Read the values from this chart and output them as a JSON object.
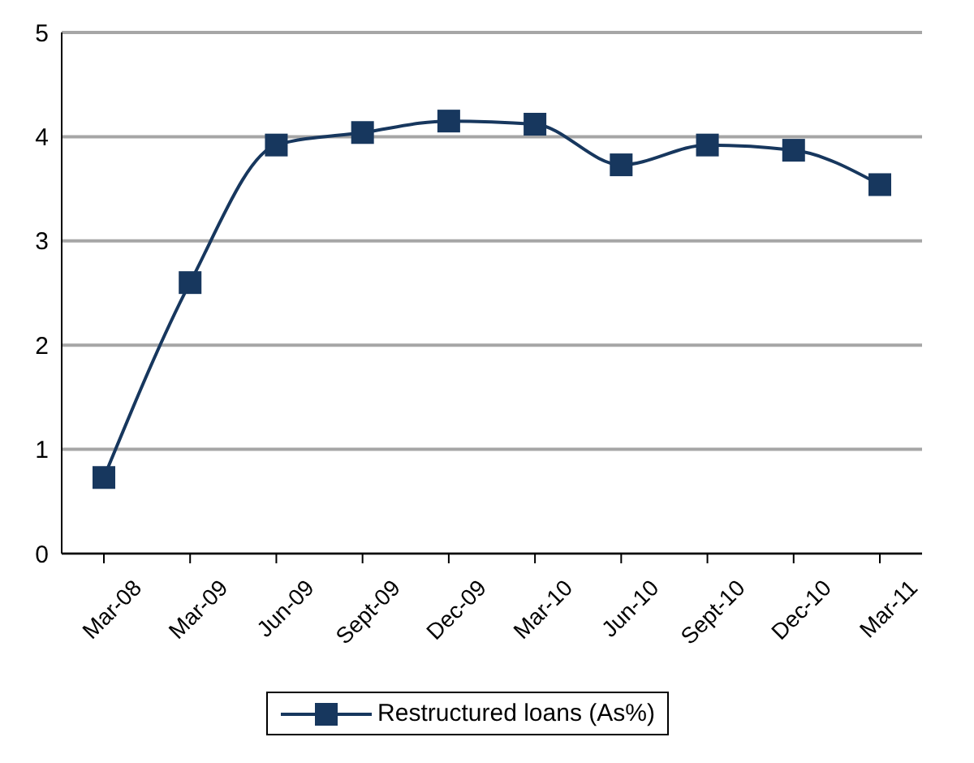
{
  "chart_data": {
    "type": "line",
    "categories": [
      "Mar-08",
      "Mar-09",
      "Jun-09",
      "Sept-09",
      "Dec-09",
      "Mar-10",
      "Jun-10",
      "Sept-10",
      "Dec-10",
      "Mar-11"
    ],
    "series": [
      {
        "name": "Restructured loans (As%)",
        "color": "#17375e",
        "values": [
          0.73,
          2.6,
          3.92,
          4.04,
          4.15,
          4.12,
          3.73,
          3.92,
          3.87,
          3.54
        ]
      }
    ],
    "ylim": [
      0,
      5
    ],
    "yticks": [
      0,
      1,
      2,
      3,
      4,
      5
    ],
    "grid": "y",
    "legend": "bottom",
    "marker": "square",
    "line_style": "solid"
  }
}
